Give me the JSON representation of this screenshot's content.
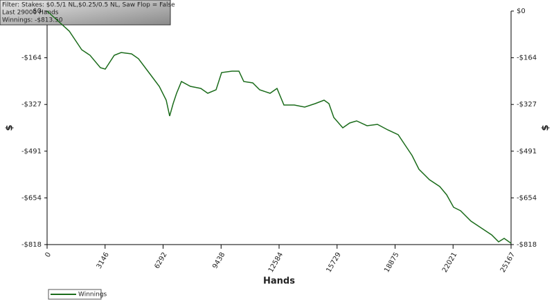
{
  "chart_data": {
    "type": "line",
    "info": [
      "Filter: Stakes: $0.5/1 NL,$0.25/0.5 NL, Saw Flop = False",
      "Last 29000 Hands",
      "Winnings: -$813.50"
    ],
    "xlabel": "Hands",
    "ylabel": "$",
    "x": [
      0,
      1202,
      1878,
      2329,
      2892,
      3155,
      3644,
      4019,
      4583,
      4958,
      5522,
      6085,
      6461,
      6649,
      6837,
      7024,
      7287,
      7776,
      8339,
      8715,
      9165,
      9466,
      10029,
      10405,
      10668,
      11156,
      11532,
      12095,
      12471,
      12847,
      13410,
      13973,
      14537,
      15025,
      15288,
      15551,
      16039,
      16415,
      16791,
      17354,
      17918,
      18481,
      19044,
      19420,
      19796,
      20171,
      20735,
      21298,
      21674,
      22049,
      22425,
      22989,
      23552,
      24115,
      24491,
      24792,
      25167
    ],
    "series": [
      {
        "name": "Winnings",
        "color": "#1a6b1a",
        "values": [
          0,
          -70.2,
          -135.5,
          -154.9,
          -198.4,
          -203.3,
          -154.9,
          -145.2,
          -150.0,
          -167.0,
          -215.4,
          -263.8,
          -312.2,
          -367.8,
          -324.3,
          -288.0,
          -246.8,
          -263.8,
          -271.0,
          -288.0,
          -275.9,
          -215.4,
          -210.5,
          -210.5,
          -246.8,
          -251.7,
          -275.9,
          -288.0,
          -271.0,
          -329.1,
          -329.1,
          -336.4,
          -324.3,
          -312.2,
          -324.3,
          -372.7,
          -409.0,
          -392.0,
          -384.8,
          -401.7,
          -396.9,
          -416.2,
          -433.2,
          -469.5,
          -505.8,
          -554.2,
          -590.5,
          -614.7,
          -643.7,
          -687.3,
          -699.4,
          -735.7,
          -759.9,
          -784.1,
          -808.3,
          -796.2,
          -813.5
        ]
      }
    ],
    "xlim": [
      0,
      25167
    ],
    "xticks": [
      0,
      3146,
      6292,
      9438,
      12584,
      15729,
      18875,
      22021,
      25167
    ],
    "ylim": [
      -818,
      0
    ],
    "yticks": [
      {
        "value": 0,
        "label": "$0"
      },
      {
        "value": -163.6,
        "label": "-$164"
      },
      {
        "value": -327.2,
        "label": "-$327"
      },
      {
        "value": -490.8,
        "label": "-$491"
      },
      {
        "value": -654.4,
        "label": "-$654"
      },
      {
        "value": -818,
        "label": "-$818"
      }
    ],
    "grid": false
  }
}
